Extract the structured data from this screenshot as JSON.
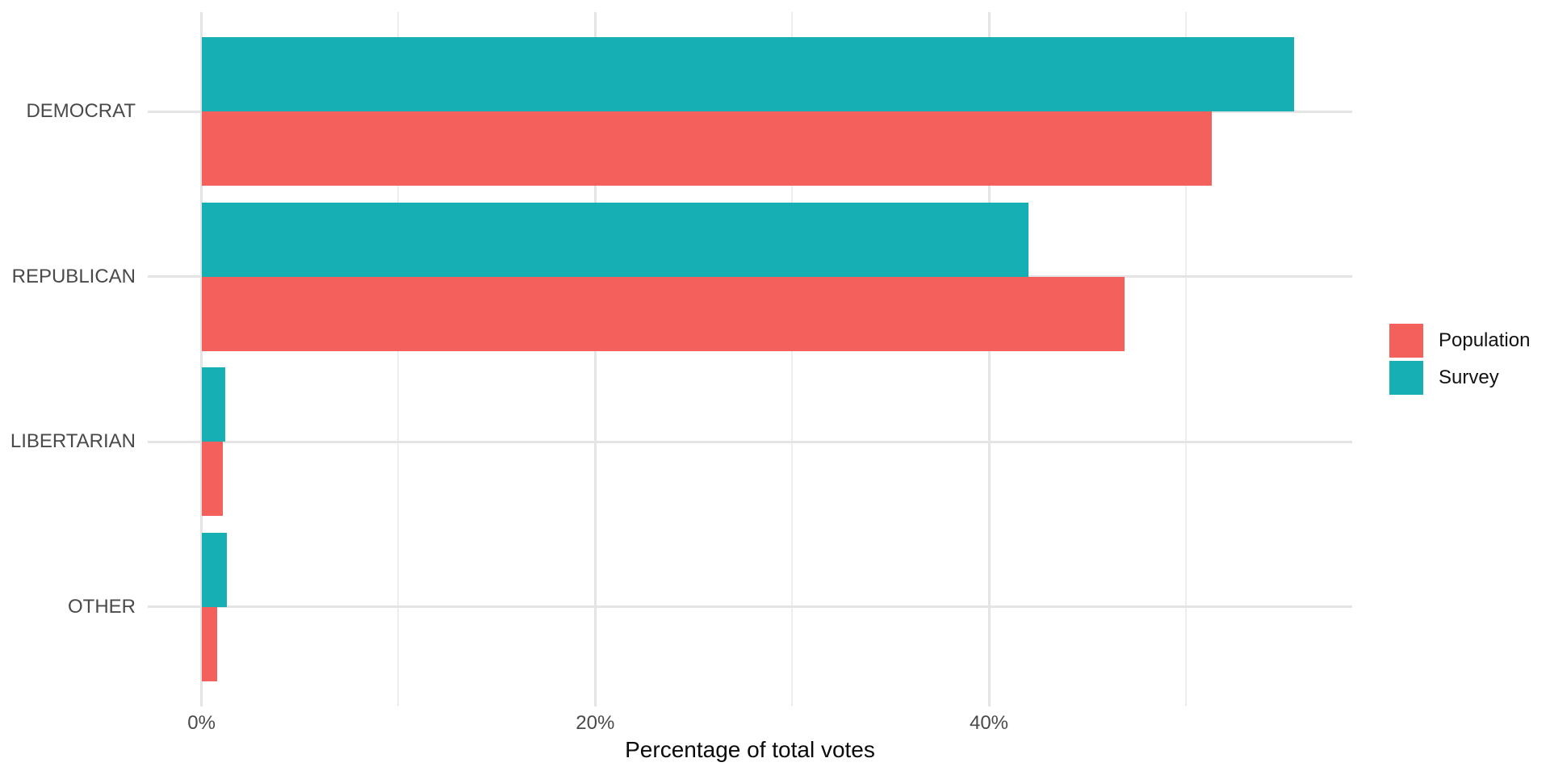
{
  "chart_data": {
    "type": "bar",
    "orientation": "horizontal",
    "title": "",
    "xlabel": "Percentage of total votes",
    "ylabel": "",
    "categories": [
      "DEMOCRAT",
      "REPUBLICAN",
      "LIBERTARIAN",
      "OTHER"
    ],
    "series": [
      {
        "name": "Population",
        "color": "#F4605C",
        "values": [
          51.3,
          46.9,
          1.1,
          0.8
        ]
      },
      {
        "name": "Survey",
        "color": "#16B0B4",
        "values": [
          55.5,
          42.0,
          1.2,
          1.3
        ]
      }
    ],
    "x_ticks": [
      {
        "value": 0,
        "label": "0%"
      },
      {
        "value": 20,
        "label": "20%"
      },
      {
        "value": 40,
        "label": "40%"
      }
    ],
    "x_minor_ticks": [
      10,
      30,
      50
    ],
    "xlim": [
      -2.9,
      58.3
    ],
    "grid": "major-and-minor, light gray on white (ggplot minimal theme)",
    "legend_position": "right",
    "legend_entries": [
      "Population",
      "Survey"
    ]
  }
}
